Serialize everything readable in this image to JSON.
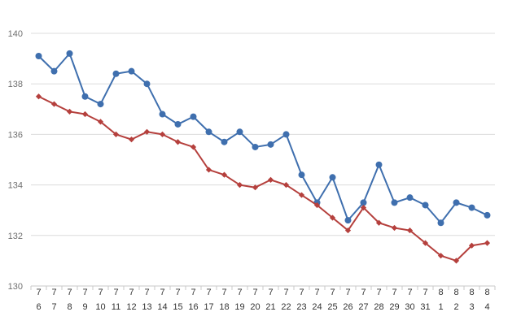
{
  "chart_data": {
    "type": "line",
    "title": "",
    "xlabel": "",
    "ylabel": "",
    "ylim": [
      130,
      140
    ],
    "yticks": [
      130,
      132,
      134,
      136,
      138,
      140
    ],
    "grid": true,
    "categories": [
      [
        "7",
        "6"
      ],
      [
        "7",
        "7"
      ],
      [
        "7",
        "8"
      ],
      [
        "7",
        "9"
      ],
      [
        "7",
        "10"
      ],
      [
        "7",
        "11"
      ],
      [
        "7",
        "12"
      ],
      [
        "7",
        "13"
      ],
      [
        "7",
        "14"
      ],
      [
        "7",
        "15"
      ],
      [
        "7",
        "16"
      ],
      [
        "7",
        "17"
      ],
      [
        "7",
        "18"
      ],
      [
        "7",
        "19"
      ],
      [
        "7",
        "20"
      ],
      [
        "7",
        "21"
      ],
      [
        "7",
        "22"
      ],
      [
        "7",
        "23"
      ],
      [
        "7",
        "24"
      ],
      [
        "7",
        "25"
      ],
      [
        "7",
        "26"
      ],
      [
        "7",
        "27"
      ],
      [
        "7",
        "28"
      ],
      [
        "7",
        "29"
      ],
      [
        "7",
        "30"
      ],
      [
        "7",
        "31"
      ],
      [
        "8",
        "1"
      ],
      [
        "8",
        "2"
      ],
      [
        "8",
        "3"
      ],
      [
        "8",
        "4"
      ]
    ],
    "series": [
      {
        "color": "#3f6fae",
        "marker": "circle",
        "values": [
          139.1,
          138.5,
          139.2,
          137.5,
          137.2,
          138.4,
          138.5,
          138.0,
          136.8,
          136.4,
          136.7,
          136.1,
          135.7,
          136.1,
          135.5,
          135.6,
          136.0,
          134.4,
          133.3,
          134.3,
          132.6,
          133.3,
          134.8,
          133.3,
          133.5,
          133.2,
          132.5,
          133.3,
          133.1,
          132.8
        ]
      },
      {
        "color": "#b5403d",
        "marker": "diamond",
        "values": [
          137.5,
          137.2,
          136.9,
          136.8,
          136.5,
          136.0,
          135.8,
          136.1,
          136.0,
          135.7,
          135.5,
          134.6,
          134.4,
          134.0,
          133.9,
          134.2,
          134.0,
          133.6,
          133.2,
          132.7,
          132.2,
          133.1,
          132.5,
          132.3,
          132.2,
          131.7,
          131.2,
          131.0,
          131.6,
          131.7
        ]
      }
    ]
  }
}
